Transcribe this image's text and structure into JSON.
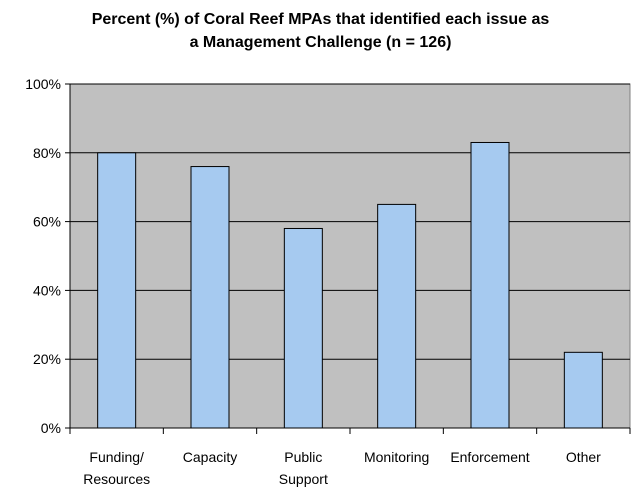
{
  "chart_data": {
    "type": "bar",
    "title_lines": [
      "Percent (%) of Coral Reef MPAs that identified each issue as",
      "a Management Challenge (n = 126)"
    ],
    "categories": [
      [
        "Funding/",
        "Resources"
      ],
      [
        "Capacity"
      ],
      [
        "Public",
        "Support"
      ],
      [
        "Monitoring"
      ],
      [
        "Enforcement"
      ],
      [
        "Other"
      ]
    ],
    "values": [
      80,
      76,
      58,
      65,
      83,
      22
    ],
    "value_unit": "%",
    "ylim": [
      0,
      100
    ],
    "yticks": [
      "0%",
      "20%",
      "40%",
      "60%",
      "80%",
      "100%"
    ],
    "ytick_values": [
      0,
      20,
      40,
      60,
      80,
      100
    ],
    "xlabel": "",
    "ylabel": "",
    "grid": true,
    "legend": "none",
    "colors": {
      "plot_background": "#c0c0c0",
      "bar_fill": "#a6caf0",
      "bar_stroke": "#000000",
      "gridline": "#000000"
    }
  }
}
